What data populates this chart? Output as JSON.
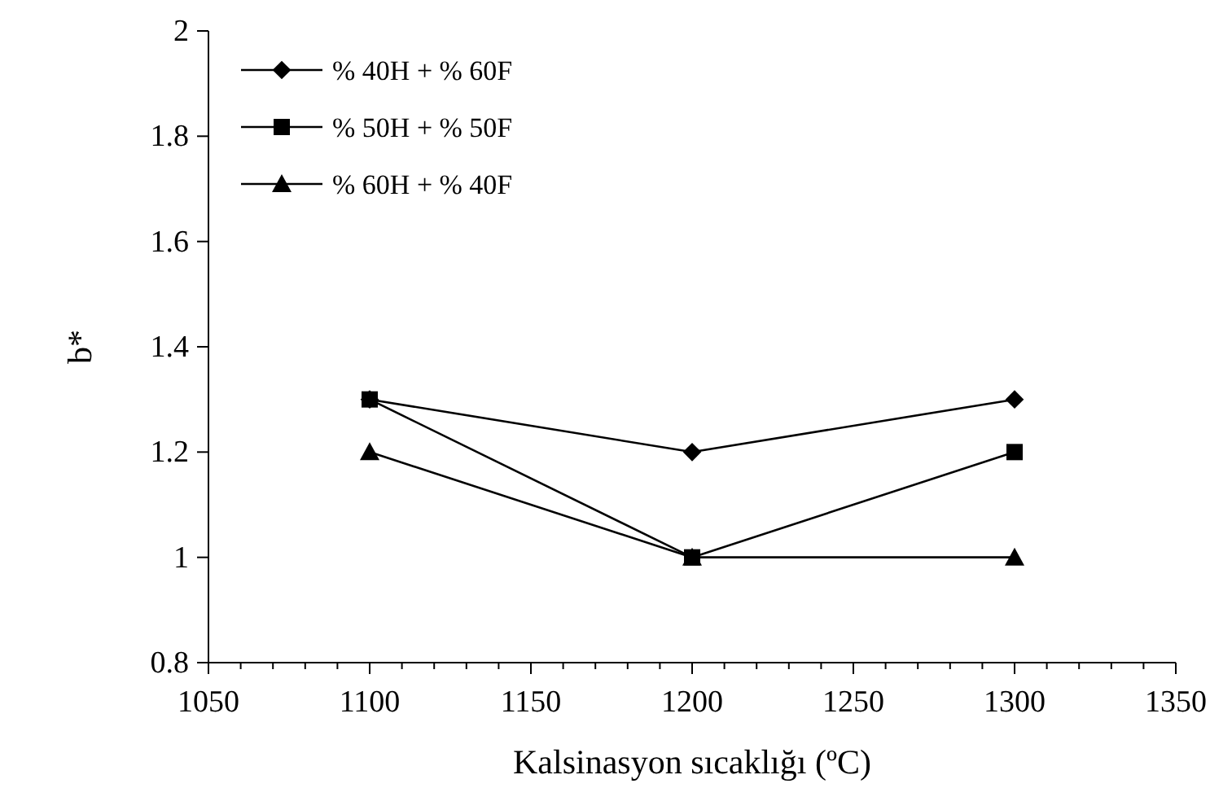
{
  "chart_data": {
    "type": "line",
    "xlabel": "Kalsinasyon sıcaklığı (ºC)",
    "ylabel": "b*",
    "x": [
      1100,
      1200,
      1300
    ],
    "series": [
      {
        "name": "% 40H + % 60F",
        "color": "#000000",
        "marker": "diamond",
        "values": [
          1.3,
          1.2,
          1.3
        ]
      },
      {
        "name": "% 50H + % 50F",
        "color": "#000000",
        "marker": "square",
        "values": [
          1.3,
          1.0,
          1.2
        ]
      },
      {
        "name": "% 60H + % 40F",
        "color": "#000000",
        "marker": "triangle",
        "values": [
          1.2,
          1.0,
          1.0
        ]
      }
    ],
    "xlim": [
      1050,
      1350
    ],
    "xticks": [
      1050,
      {
        "value": 1060,
        "label": null
      },
      {
        "value": 1070,
        "label": null
      },
      {
        "value": 1080,
        "label": null
      },
      {
        "value": 1090,
        "label": null
      },
      1100,
      {
        "value": 1110,
        "label": null
      },
      {
        "value": 1120,
        "label": null
      },
      {
        "value": 1130,
        "label": null
      },
      {
        "value": 1140,
        "label": null
      },
      1150,
      {
        "value": 1160,
        "label": null
      },
      {
        "value": 1170,
        "label": null
      },
      {
        "value": 1180,
        "label": null
      },
      {
        "value": 1190,
        "label": null
      },
      1200,
      {
        "value": 1210,
        "label": null
      },
      {
        "value": 1220,
        "label": null
      },
      {
        "value": 1230,
        "label": null
      },
      {
        "value": 1240,
        "label": null
      },
      1250,
      {
        "value": 1260,
        "label": null
      },
      {
        "value": 1270,
        "label": null
      },
      {
        "value": 1280,
        "label": null
      },
      {
        "value": 1290,
        "label": null
      },
      1300,
      {
        "value": 1310,
        "label": null
      },
      {
        "value": 1320,
        "label": null
      },
      {
        "value": 1330,
        "label": null
      },
      {
        "value": 1340,
        "label": null
      },
      1350
    ],
    "ylim": [
      0.8,
      2
    ],
    "yticks": [
      {
        "value": 0.8,
        "label": "0.8"
      },
      1,
      {
        "value": 1.2,
        "label": "1.2"
      },
      {
        "value": 1.4,
        "label": "1.4"
      },
      {
        "value": 1.6,
        "label": "1.6"
      },
      {
        "value": 1.8,
        "label": "1.8"
      },
      2
    ],
    "grid": false,
    "legend": "top left",
    "line_style": "solid"
  }
}
